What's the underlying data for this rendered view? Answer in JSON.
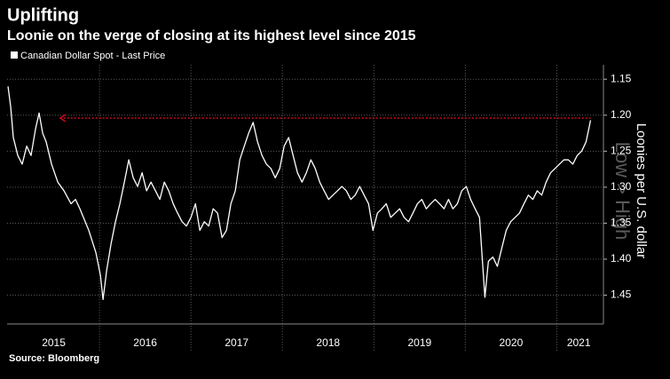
{
  "chart_data": {
    "type": "line",
    "title": "Uplifting",
    "subtitle": "Loonie on the verge of closing at its highest level since 2015",
    "y_axis_label": "Loonies per U.S. dollar",
    "y_direction_note": "Low > High",
    "source": "Source: Bloomberg",
    "x": [
      2015.0,
      2015.029,
      2015.058,
      2015.107,
      2015.155,
      2015.204,
      2015.252,
      2015.301,
      2015.34,
      2015.379,
      2015.417,
      2015.476,
      2015.544,
      2015.612,
      2015.689,
      2015.738,
      2015.786,
      2015.883,
      2015.961,
      2016.01,
      2016.039,
      2016.078,
      2016.126,
      2016.175,
      2016.223,
      2016.272,
      2016.32,
      2016.369,
      2016.417,
      2016.466,
      2016.515,
      2016.563,
      2016.612,
      2016.66,
      2016.709,
      2016.757,
      2016.806,
      2016.854,
      2016.903,
      2016.951,
      2017.0,
      2017.049,
      2017.097,
      2017.146,
      2017.194,
      2017.243,
      2017.291,
      2017.34,
      2017.388,
      2017.437,
      2017.485,
      2017.534,
      2017.583,
      2017.631,
      2017.68,
      2017.728,
      2017.777,
      2017.825,
      2017.874,
      2017.922,
      2017.971,
      2018.019,
      2018.068,
      2018.117,
      2018.165,
      2018.214,
      2018.262,
      2018.311,
      2018.359,
      2018.408,
      2018.456,
      2018.505,
      2018.553,
      2018.602,
      2018.65,
      2018.699,
      2018.748,
      2018.796,
      2018.845,
      2018.893,
      2018.942,
      2018.99,
      2019.039,
      2019.087,
      2019.136,
      2019.184,
      2019.233,
      2019.282,
      2019.33,
      2019.379,
      2019.427,
      2019.476,
      2019.524,
      2019.573,
      2019.621,
      2019.67,
      2019.718,
      2019.767,
      2019.816,
      2019.864,
      2019.913,
      2019.961,
      2020.01,
      2020.058,
      2020.107,
      2020.155,
      2020.184,
      2020.214,
      2020.252,
      2020.301,
      2020.35,
      2020.398,
      2020.447,
      2020.495,
      2020.544,
      2020.592,
      2020.641,
      2020.689,
      2020.738,
      2020.786,
      2020.835,
      2020.883,
      2020.932,
      2020.981,
      2021.029,
      2021.078,
      2021.126,
      2021.175,
      2021.223,
      2021.272,
      2021.32,
      2021.35,
      2021.369
    ],
    "series": [
      {
        "name": "Canadian Dollar Spot - Last Price",
        "color": "#ffffff",
        "values": [
          1.16,
          1.188,
          1.231,
          1.256,
          1.268,
          1.243,
          1.256,
          1.219,
          1.197,
          1.225,
          1.237,
          1.268,
          1.293,
          1.305,
          1.323,
          1.317,
          1.33,
          1.36,
          1.391,
          1.422,
          1.456,
          1.416,
          1.379,
          1.348,
          1.323,
          1.293,
          1.262,
          1.287,
          1.299,
          1.28,
          1.305,
          1.293,
          1.305,
          1.317,
          1.293,
          1.305,
          1.323,
          1.336,
          1.348,
          1.354,
          1.342,
          1.323,
          1.36,
          1.348,
          1.354,
          1.33,
          1.336,
          1.37,
          1.36,
          1.323,
          1.305,
          1.262,
          1.243,
          1.225,
          1.21,
          1.237,
          1.256,
          1.268,
          1.274,
          1.287,
          1.274,
          1.243,
          1.231,
          1.256,
          1.28,
          1.293,
          1.28,
          1.262,
          1.274,
          1.293,
          1.305,
          1.317,
          1.311,
          1.305,
          1.299,
          1.305,
          1.317,
          1.311,
          1.299,
          1.311,
          1.323,
          1.36,
          1.336,
          1.33,
          1.323,
          1.342,
          1.336,
          1.33,
          1.342,
          1.348,
          1.336,
          1.323,
          1.317,
          1.33,
          1.323,
          1.317,
          1.323,
          1.33,
          1.317,
          1.33,
          1.323,
          1.305,
          1.299,
          1.317,
          1.33,
          1.342,
          1.397,
          1.453,
          1.403,
          1.397,
          1.41,
          1.385,
          1.36,
          1.348,
          1.342,
          1.336,
          1.323,
          1.311,
          1.317,
          1.305,
          1.311,
          1.293,
          1.28,
          1.274,
          1.268,
          1.262,
          1.262,
          1.268,
          1.256,
          1.25,
          1.237,
          1.219,
          1.207
        ]
      }
    ],
    "xlim": [
      2014.99,
      2021.51
    ],
    "xticks": [
      {
        "value": 2015.5,
        "label": "2015"
      },
      {
        "value": 2016.5,
        "label": "2016"
      },
      {
        "value": 2017.5,
        "label": "2017"
      },
      {
        "value": 2018.5,
        "label": "2018"
      },
      {
        "value": 2019.5,
        "label": "2019"
      },
      {
        "value": 2020.5,
        "label": "2020"
      },
      {
        "value": 2021.24,
        "label": "2021"
      }
    ],
    "xdividers": [
      2016,
      2017,
      2018,
      2019,
      2020,
      2021
    ],
    "ylim": [
      1.13,
      1.49
    ],
    "y_inverted": true,
    "yticks": [
      1.15,
      {
        "value": 1.2,
        "label": "1.20"
      },
      1.25,
      {
        "value": 1.3,
        "label": "1.30"
      },
      1.35,
      {
        "value": 1.4,
        "label": "1.40"
      },
      1.45
    ],
    "grid": true,
    "reference_line": {
      "value": 1.204,
      "from": 2015.57,
      "to": 2021.37,
      "color": "#d0021b"
    }
  }
}
